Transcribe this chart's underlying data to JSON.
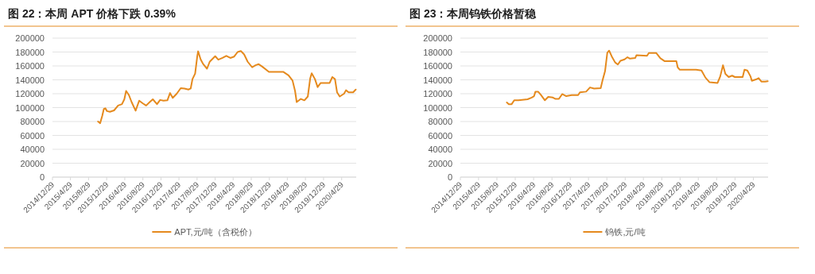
{
  "chart_data": [
    {
      "type": "line",
      "title": "图 22：本周 APT 价格下跌 0.39%",
      "grid": "y",
      "legend": "bottom",
      "xlim": [
        "2014-12-29",
        "2020-08-05"
      ],
      "ylim": [
        0,
        200000
      ],
      "yticks": [
        0,
        20000,
        40000,
        60000,
        80000,
        100000,
        120000,
        140000,
        160000,
        180000,
        200000
      ],
      "xticks": [
        {
          "value": "2014-12-29",
          "label": "2014/12/29"
        },
        {
          "value": "2015-04-29",
          "label": "2015/4/29"
        },
        {
          "value": "2015-08-29",
          "label": "2015/8/29"
        },
        {
          "value": "2015-12-29",
          "label": "2015/12/29"
        },
        {
          "value": "2016-04-29",
          "label": "2016/4/29"
        },
        {
          "value": "2016-08-29",
          "label": "2016/8/29"
        },
        {
          "value": "2016-12-29",
          "label": "2016/12/29"
        },
        {
          "value": "2017-04-29",
          "label": "2017/4/29"
        },
        {
          "value": "2017-08-29",
          "label": "2017/8/29"
        },
        {
          "value": "2017-12-29",
          "label": "2017/12/29"
        },
        {
          "value": "2018-04-29",
          "label": "2018/4/29"
        },
        {
          "value": "2018-08-29",
          "label": "2018/8/29"
        },
        {
          "value": "2018-12-29",
          "label": "2018/12/29"
        },
        {
          "value": "2019-04-29",
          "label": "2019/4/29"
        },
        {
          "value": "2019-08-29",
          "label": "2019/8/29"
        },
        {
          "value": "2019-12-29",
          "label": "2019/12/29"
        },
        {
          "value": "2020-04-29",
          "label": "2020/4/29"
        }
      ],
      "series": [
        {
          "name": "APT,元/吨（含税价）",
          "color": "#e58a1e",
          "x": [
            "2015-11-01",
            "2015-11-15",
            "2015-11-29",
            "2015-12-10",
            "2015-12-20",
            "2015-12-31",
            "2016-01-20",
            "2016-02-17",
            "2016-03-15",
            "2016-04-10",
            "2016-04-26",
            "2016-05-08",
            "2016-05-27",
            "2016-06-14",
            "2016-07-11",
            "2016-08-04",
            "2016-08-29",
            "2016-09-20",
            "2016-10-14",
            "2016-11-04",
            "2016-12-02",
            "2016-12-23",
            "2017-01-15",
            "2017-02-10",
            "2017-02-28",
            "2017-03-18",
            "2017-04-14",
            "2017-05-11",
            "2017-06-05",
            "2017-07-02",
            "2017-07-17",
            "2017-07-29",
            "2017-08-16",
            "2017-08-31",
            "2017-09-05",
            "2017-09-22",
            "2017-10-08",
            "2017-11-04",
            "2017-11-22",
            "2017-12-29",
            "2018-01-19",
            "2018-02-16",
            "2018-03-14",
            "2018-04-10",
            "2018-05-06",
            "2018-05-29",
            "2018-06-20",
            "2018-07-12",
            "2018-08-05",
            "2018-09-04",
            "2018-09-27",
            "2018-10-18",
            "2018-11-11",
            "2018-12-26",
            "2019-04-01",
            "2019-05-07",
            "2019-06-03",
            "2019-06-20",
            "2019-07-01",
            "2019-07-29",
            "2019-08-22",
            "2019-09-14",
            "2019-09-30",
            "2019-10-10",
            "2019-11-01",
            "2019-11-19",
            "2019-12-10",
            "2020-02-08",
            "2020-02-26",
            "2020-03-15",
            "2020-03-29",
            "2020-04-16",
            "2020-05-15",
            "2020-05-28",
            "2020-06-15",
            "2020-07-15",
            "2020-08-02"
          ],
          "values": [
            80000,
            77600,
            88000,
            98000,
            99000,
            95000,
            94000,
            96000,
            103000,
            105000,
            112000,
            124000,
            118000,
            108000,
            95500,
            110000,
            106000,
            103000,
            108000,
            112000,
            105000,
            111000,
            110000,
            110500,
            121000,
            114000,
            120000,
            128000,
            127500,
            126000,
            127500,
            141000,
            149000,
            175000,
            181000,
            169500,
            163000,
            156000,
            166000,
            174000,
            169000,
            171500,
            174500,
            171500,
            173500,
            180000,
            181500,
            176500,
            166000,
            158000,
            161000,
            162500,
            159000,
            151500,
            151500,
            146500,
            139000,
            124000,
            108000,
            112500,
            110500,
            116000,
            142000,
            149500,
            141000,
            129500,
            135500,
            135500,
            144000,
            141000,
            122000,
            116000,
            120000,
            125000,
            122000,
            122000,
            126000
          ]
        }
      ]
    },
    {
      "type": "line",
      "title": "图 23：本周钨铁价格暂稳",
      "grid": "y",
      "legend": "bottom",
      "xlim": [
        "2014-12-29",
        "2020-08-05"
      ],
      "ylim": [
        0,
        200000
      ],
      "yticks": [
        0,
        20000,
        40000,
        60000,
        80000,
        100000,
        120000,
        140000,
        160000,
        180000,
        200000
      ],
      "xticks": [
        {
          "value": "2014-12-29",
          "label": "2014/12/29"
        },
        {
          "value": "2015-04-29",
          "label": "2015/4/29"
        },
        {
          "value": "2015-08-29",
          "label": "2015/8/29"
        },
        {
          "value": "2015-12-29",
          "label": "2015/12/29"
        },
        {
          "value": "2016-04-29",
          "label": "2016/4/29"
        },
        {
          "value": "2016-08-29",
          "label": "2016/8/29"
        },
        {
          "value": "2016-12-29",
          "label": "2016/12/29"
        },
        {
          "value": "2017-04-29",
          "label": "2017/4/29"
        },
        {
          "value": "2017-08-29",
          "label": "2017/8/29"
        },
        {
          "value": "2017-12-29",
          "label": "2017/12/29"
        },
        {
          "value": "2018-04-29",
          "label": "2018/4/29"
        },
        {
          "value": "2018-08-29",
          "label": "2018/8/29"
        },
        {
          "value": "2018-12-29",
          "label": "2018/12/29"
        },
        {
          "value": "2019-04-29",
          "label": "2019/4/29"
        },
        {
          "value": "2019-08-29",
          "label": "2019/8/29"
        },
        {
          "value": "2019-12-29",
          "label": "2019/12/29"
        },
        {
          "value": "2020-04-29",
          "label": "2020/4/29"
        }
      ],
      "series": [
        {
          "name": "钨铁,元/吨",
          "color": "#e58a1e",
          "x": [
            "2015-11-03",
            "2015-11-16",
            "2015-12-05",
            "2015-12-22",
            "2016-01-19",
            "2016-03-20",
            "2016-04-16",
            "2016-05-02",
            "2016-05-11",
            "2016-05-29",
            "2016-06-16",
            "2016-07-13",
            "2016-08-04",
            "2016-09-04",
            "2016-09-22",
            "2016-10-14",
            "2016-11-05",
            "2016-12-02",
            "2017-01-07",
            "2017-02-19",
            "2017-03-03",
            "2017-04-13",
            "2017-05-09",
            "2017-06-05",
            "2017-07-19",
            "2017-07-31",
            "2017-08-17",
            "2017-09-01",
            "2017-09-13",
            "2017-10-01",
            "2017-10-23",
            "2017-11-10",
            "2017-11-28",
            "2017-12-25",
            "2018-01-13",
            "2018-01-30",
            "2018-03-06",
            "2018-03-14",
            "2018-05-23",
            "2018-06-04",
            "2018-07-24",
            "2018-08-20",
            "2018-09-16",
            "2018-12-04",
            "2018-12-13",
            "2018-12-27",
            "2019-04-14",
            "2019-05-20",
            "2019-06-16",
            "2019-07-13",
            "2019-09-04",
            "2019-09-22",
            "2019-10-10",
            "2019-10-26",
            "2019-11-17",
            "2019-12-10",
            "2019-12-28",
            "2020-02-18",
            "2020-03-01",
            "2020-03-20",
            "2020-04-10",
            "2020-04-19",
            "2020-05-16",
            "2020-06-03",
            "2020-06-21",
            "2020-07-16",
            "2020-08-03"
          ],
          "values": [
            107500,
            105000,
            105000,
            110500,
            110500,
            112000,
            114500,
            116500,
            123000,
            123000,
            118500,
            110500,
            115500,
            114500,
            112500,
            112500,
            119500,
            116500,
            118000,
            118000,
            122000,
            123000,
            129000,
            127500,
            128000,
            139000,
            152500,
            179000,
            182000,
            173500,
            165000,
            162000,
            167500,
            169500,
            172500,
            170500,
            171500,
            175500,
            174500,
            178500,
            178500,
            171000,
            167000,
            167000,
            158000,
            154500,
            154500,
            153500,
            143000,
            136500,
            135500,
            145000,
            161000,
            148500,
            144000,
            146000,
            144000,
            144000,
            154500,
            153500,
            145000,
            138500,
            140500,
            142500,
            137500,
            137500,
            138000
          ]
        }
      ]
    }
  ]
}
